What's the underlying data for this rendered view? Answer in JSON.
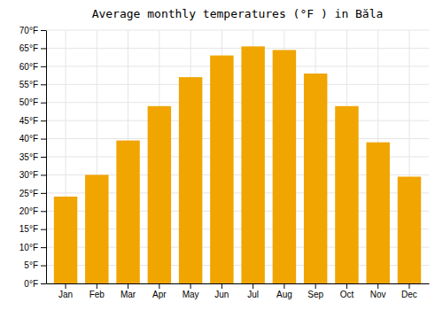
{
  "chart_data": {
    "type": "bar",
    "title": "Average monthly temperatures (°F ) in Băla",
    "categories": [
      "Jan",
      "Feb",
      "Mar",
      "Apr",
      "May",
      "Jun",
      "Jul",
      "Aug",
      "Sep",
      "Oct",
      "Nov",
      "Dec"
    ],
    "values": [
      24,
      30,
      39.5,
      49,
      57,
      63,
      65.5,
      64.5,
      58,
      49,
      39,
      29.5
    ],
    "color": "#F0A500",
    "ylim": [
      0,
      70
    ],
    "yticks": [
      {
        "value": 0,
        "label": "0°F"
      },
      {
        "value": 5,
        "label": "5°F"
      },
      {
        "value": 10,
        "label": "10°F"
      },
      {
        "value": 15,
        "label": "15°F"
      },
      {
        "value": 20,
        "label": "20°F"
      },
      {
        "value": 25,
        "label": "25°F"
      },
      {
        "value": 30,
        "label": "30°F"
      },
      {
        "value": 35,
        "label": "35°F"
      },
      {
        "value": 40,
        "label": "40°F"
      },
      {
        "value": 45,
        "label": "45°F"
      },
      {
        "value": 50,
        "label": "50°F"
      },
      {
        "value": 55,
        "label": "55°F"
      },
      {
        "value": 60,
        "label": "60°F"
      },
      {
        "value": 65,
        "label": "65°F"
      },
      {
        "value": 70,
        "label": "70°F"
      }
    ],
    "grid": true
  }
}
